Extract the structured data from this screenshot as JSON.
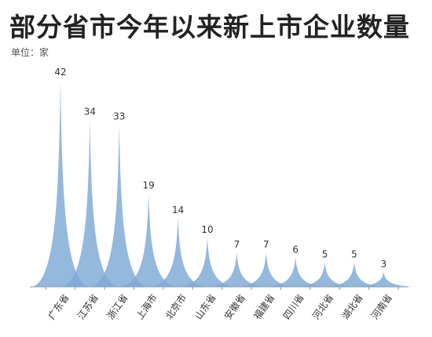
{
  "title": "部分省市今年以来新上市企业数量",
  "unit_label": "单位：家",
  "colors": {
    "peak_fill": "#7ea8d6",
    "axis": "#999999"
  },
  "chart_data": {
    "type": "bar",
    "title": "部分省市今年以来新上市企业数量",
    "subtitle": "单位：家",
    "categories": [
      "广东省",
      "江苏省",
      "浙江省",
      "上海市",
      "北京市",
      "山东省",
      "安徽省",
      "福建省",
      "四川省",
      "河北省",
      "湖北省",
      "河南省"
    ],
    "values": [
      42,
      34,
      33,
      19,
      14,
      10,
      7,
      7,
      6,
      5,
      5,
      3
    ],
    "xlabel": "",
    "ylabel": "",
    "ylim": [
      0,
      42
    ],
    "grid": false,
    "legend": "none"
  }
}
